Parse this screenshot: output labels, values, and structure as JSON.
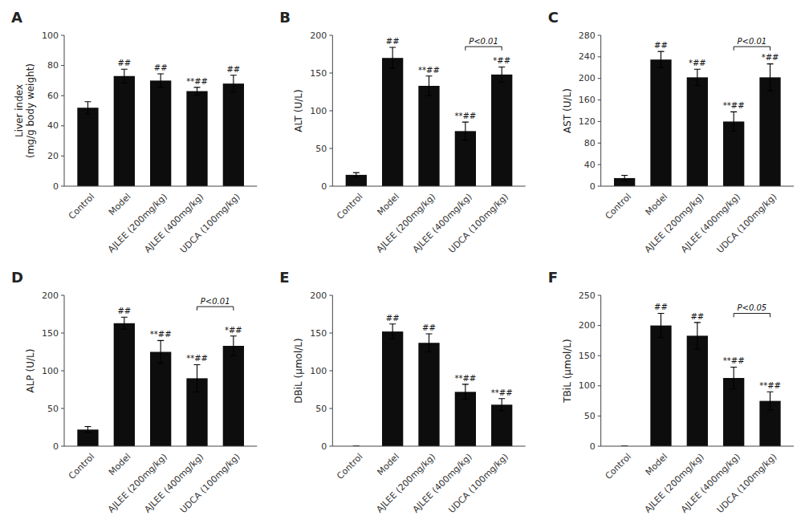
{
  "chart_data": [
    {
      "type": "bar",
      "title": "A",
      "ylabel": "Liver index\n(mg/g body weight)",
      "categories": [
        "Control",
        "Model",
        "AJLEE (200mg/kg)",
        "AJLEE (400mg/kg)",
        "UDCA (100mg/kg)"
      ],
      "values": [
        52,
        73,
        70,
        63,
        68
      ],
      "errors": [
        4.0,
        4.5,
        4.5,
        2.5,
        5.5
      ],
      "color": "#0d0d0d",
      "ylim": [
        0,
        100
      ],
      "yticks": [
        0,
        20,
        40,
        60,
        80,
        100
      ],
      "grid": false,
      "annotations": [
        {
          "category": "Model",
          "text": "##"
        },
        {
          "category": "AJLEE (200mg/kg)",
          "text": "##"
        },
        {
          "category": "AJLEE (400mg/kg)",
          "text": "**##"
        },
        {
          "category": "UDCA (100mg/kg)",
          "text": "##"
        }
      ]
    },
    {
      "type": "bar",
      "title": "B",
      "ylabel": "ALT (U/L)",
      "categories": [
        "Control",
        "Model",
        "AJLEE (200mg/kg)",
        "AJLEE (400mg/kg)",
        "UDCA (100mg/kg)"
      ],
      "values": [
        15,
        170,
        133,
        73,
        148
      ],
      "errors": [
        3,
        14,
        13,
        12,
        10
      ],
      "color": "#0d0d0d",
      "ylim": [
        0,
        200
      ],
      "yticks": [
        0,
        50,
        100,
        150,
        200
      ],
      "grid": false,
      "annotations": [
        {
          "category": "Model",
          "text": "##"
        },
        {
          "category": "AJLEE (200mg/kg)",
          "text": "**##"
        },
        {
          "category": "AJLEE (400mg/kg)",
          "text": "**##"
        },
        {
          "category": "UDCA (100mg/kg)",
          "text": "*##"
        }
      ],
      "bracket": {
        "from": "AJLEE (400mg/kg)",
        "to": "UDCA (100mg/kg)",
        "y": 185,
        "text": "P<0.01"
      }
    },
    {
      "type": "bar",
      "title": "C",
      "ylabel": "AST (U/L)",
      "categories": [
        "Control",
        "Model",
        "AJLEE (200mg/kg)",
        "AJLEE (400mg/kg)",
        "UDCA (100mg/kg)"
      ],
      "values": [
        15,
        235,
        202,
        120,
        202
      ],
      "errors": [
        5,
        15,
        15,
        18,
        25
      ],
      "color": "#0d0d0d",
      "ylim": [
        0,
        280
      ],
      "yticks": [
        0,
        40,
        80,
        120,
        160,
        200,
        240,
        280
      ],
      "grid": false,
      "annotations": [
        {
          "category": "Model",
          "text": "##"
        },
        {
          "category": "AJLEE (200mg/kg)",
          "text": "*##"
        },
        {
          "category": "AJLEE (400mg/kg)",
          "text": "**##"
        },
        {
          "category": "UDCA (100mg/kg)",
          "text": "*##"
        }
      ],
      "bracket": {
        "from": "AJLEE (400mg/kg)",
        "to": "UDCA (100mg/kg)",
        "y": 259,
        "text": "P<0.01"
      }
    },
    {
      "type": "bar",
      "title": "D",
      "ylabel": "ALP (U/L)",
      "categories": [
        "Control",
        "Model",
        "AJLEE (200mg/kg)",
        "AJLEE (400mg/kg)",
        "UDCA (100mg/kg)"
      ],
      "values": [
        22,
        163,
        125,
        90,
        133
      ],
      "errors": [
        4,
        8,
        15,
        18,
        13
      ],
      "color": "#0d0d0d",
      "ylim": [
        0,
        200
      ],
      "yticks": [
        0,
        50,
        100,
        150,
        200
      ],
      "grid": false,
      "annotations": [
        {
          "category": "Model",
          "text": "##"
        },
        {
          "category": "AJLEE (200mg/kg)",
          "text": "**##"
        },
        {
          "category": "AJLEE (400mg/kg)",
          "text": "**##"
        },
        {
          "category": "UDCA (100mg/kg)",
          "text": "*##"
        }
      ],
      "bracket": {
        "from": "AJLEE (400mg/kg)",
        "to": "UDCA (100mg/kg)",
        "y": 185,
        "text": "P<0.01"
      }
    },
    {
      "type": "bar",
      "title": "E",
      "ylabel": "DBiL (μmol/L)",
      "categories": [
        "Control",
        "Model",
        "AJLEE (200mg/kg)",
        "AJLEE (400mg/kg)",
        "UDCA (100mg/kg)"
      ],
      "values": [
        0,
        152,
        137,
        72,
        55
      ],
      "errors": [
        0,
        10,
        12,
        10,
        8
      ],
      "color": "#0d0d0d",
      "ylim": [
        0,
        200
      ],
      "yticks": [
        0,
        50,
        100,
        150,
        200
      ],
      "grid": false,
      "annotations": [
        {
          "category": "Model",
          "text": "##"
        },
        {
          "category": "AJLEE (200mg/kg)",
          "text": "##"
        },
        {
          "category": "AJLEE (400mg/kg)",
          "text": "**##"
        },
        {
          "category": "UDCA (100mg/kg)",
          "text": "**##"
        }
      ]
    },
    {
      "type": "bar",
      "title": "F",
      "ylabel": "TBiL (μmol/L)",
      "categories": [
        "Control",
        "Model",
        "AJLEE (200mg/kg)",
        "AJLEE (400mg/kg)",
        "UDCA (100mg/kg)"
      ],
      "values": [
        0,
        200,
        183,
        113,
        75
      ],
      "errors": [
        0,
        20,
        22,
        18,
        15
      ],
      "color": "#0d0d0d",
      "ylim": [
        0,
        250
      ],
      "yticks": [
        0,
        50,
        100,
        150,
        200,
        250
      ],
      "grid": false,
      "annotations": [
        {
          "category": "Model",
          "text": "##"
        },
        {
          "category": "AJLEE (200mg/kg)",
          "text": "##"
        },
        {
          "category": "AJLEE (400mg/kg)",
          "text": "**##"
        },
        {
          "category": "UDCA (100mg/kg)",
          "text": "**##"
        }
      ],
      "bracket": {
        "from": "AJLEE (400mg/kg)",
        "to": "UDCA (100mg/kg)",
        "y": 220,
        "text": "P<0.05"
      }
    }
  ]
}
